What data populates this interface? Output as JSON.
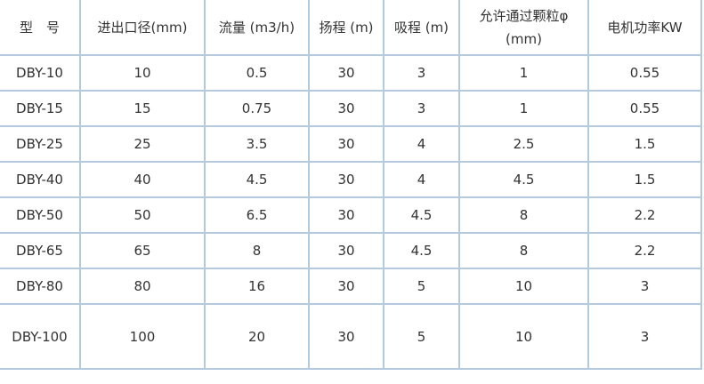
{
  "table": {
    "name": "pump-specification-table",
    "columns": [
      {
        "label": "型　号",
        "lines": [
          "型　号"
        ]
      },
      {
        "label": "进出口径(mm)",
        "lines": [
          "进出口径(mm)"
        ]
      },
      {
        "label": "流量 (m3/h)",
        "lines": [
          "流量 (m3/h)"
        ]
      },
      {
        "label": "扬程 (m)",
        "lines": [
          "扬程 (m)"
        ]
      },
      {
        "label": "吸程 (m)",
        "lines": [
          "吸程 (m)"
        ]
      },
      {
        "label": "允许通过颗粒φ (mm)",
        "lines": [
          "允许通过颗粒φ",
          "(mm)"
        ]
      },
      {
        "label": "电机功率KW",
        "lines": [
          "电机功率KW"
        ]
      }
    ],
    "rows": [
      [
        "DBY-10",
        "10",
        "0.5",
        "30",
        "3",
        "1",
        "0.55"
      ],
      [
        "DBY-15",
        "15",
        "0.75",
        "30",
        "3",
        "1",
        "0.55"
      ],
      [
        "DBY-25",
        "25",
        "3.5",
        "30",
        "4",
        "2.5",
        "1.5"
      ],
      [
        "DBY-40",
        "40",
        "4.5",
        "30",
        "4",
        "4.5",
        "1.5"
      ],
      [
        "DBY-50",
        "50",
        "6.5",
        "30",
        "4.5",
        "8",
        "2.2"
      ],
      [
        "DBY-65",
        "65",
        "8",
        "30",
        "4.5",
        "8",
        "2.2"
      ],
      [
        "DBY-80",
        "80",
        "16",
        "30",
        "5",
        "10",
        "3"
      ],
      [
        "DBY-100",
        "100",
        "20",
        "30",
        "5",
        "10",
        "3"
      ]
    ]
  },
  "colors": {
    "border": "#b3c9de",
    "text": "#333333",
    "background": "#ffffff"
  }
}
